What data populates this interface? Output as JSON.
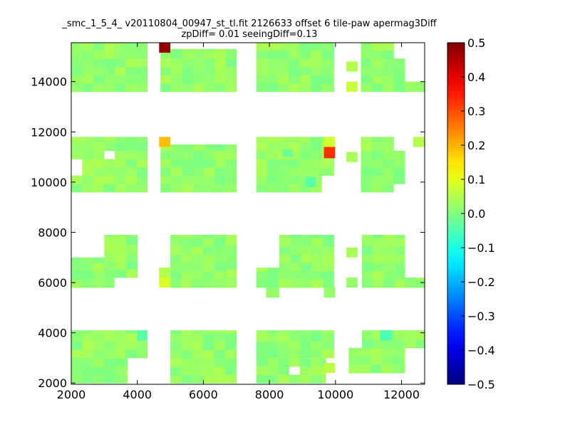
{
  "chart_data": {
    "type": "heatmap",
    "title_line1": "_smc_1_5_4_ v20110804_00947_st_tl.fit 2126633 offset 6 tile-paw apermag3Diff",
    "title_line2": "zpDiff= 0.01 seeingDiff=0.13",
    "xlim": [
      2000,
      12700
    ],
    "ylim": [
      1950,
      15550
    ],
    "x_ticks": [
      2000,
      4000,
      6000,
      8000,
      10000,
      12000
    ],
    "y_ticks": [
      2000,
      4000,
      6000,
      8000,
      10000,
      12000,
      14000
    ],
    "x_tick_labels": [
      "2000",
      "4000",
      "6000",
      "8000",
      "10000",
      "12000"
    ],
    "y_tick_labels": [
      "2000",
      "4000",
      "6000",
      "8000",
      "10000",
      "12000",
      "14000"
    ],
    "colorbar": {
      "min": -0.5,
      "max": 0.5,
      "colormap": "jet",
      "ticks": [
        0.5,
        0.4,
        0.3,
        0.2,
        0.1,
        0.0,
        -0.1,
        -0.2,
        -0.3,
        -0.4,
        -0.5
      ],
      "tick_labels": [
        "0.5",
        "0.4",
        "0.3",
        "0.2",
        "0.1",
        "0.0",
        "−0.1",
        "−0.2",
        "−0.3",
        "−0.4",
        "−0.5"
      ]
    },
    "cell_size": 330,
    "default_value": 0.02,
    "regions": [
      {
        "x0": 2000,
        "x1": 4300,
        "y0": 13600,
        "y1": 15550
      },
      {
        "x0": 4700,
        "x1": 7000,
        "y0": 13600,
        "y1": 15300
      },
      {
        "x0": 7600,
        "x1": 9950,
        "y0": 13600,
        "y1": 15550
      },
      {
        "x0": 10770,
        "x1": 12100,
        "y0": 13600,
        "y1": 15550
      },
      {
        "x0": 12100,
        "x1": 12700,
        "y0": 13600,
        "y1": 14000
      },
      {
        "x0": 2000,
        "x1": 4300,
        "y0": 9600,
        "y1": 11800
      },
      {
        "x0": 4700,
        "x1": 7000,
        "y0": 9600,
        "y1": 11500
      },
      {
        "x0": 7600,
        "x1": 9950,
        "y0": 9600,
        "y1": 11800
      },
      {
        "x0": 10770,
        "x1": 12100,
        "y0": 9600,
        "y1": 11800
      },
      {
        "x0": 3000,
        "x1": 4000,
        "y0": 6200,
        "y1": 7900
      },
      {
        "x0": 2000,
        "x1": 3000,
        "y0": 5800,
        "y1": 7000
      },
      {
        "x0": 3000,
        "x1": 3300,
        "y0": 5800,
        "y1": 6200
      },
      {
        "x0": 5000,
        "x1": 7000,
        "y0": 5800,
        "y1": 7900
      },
      {
        "x0": 6700,
        "x1": 7000,
        "y0": 6200,
        "y1": 7900
      },
      {
        "x0": 8300,
        "x1": 9950,
        "y0": 5800,
        "y1": 7900
      },
      {
        "x0": 7600,
        "x1": 8300,
        "y0": 5800,
        "y1": 6600
      },
      {
        "x0": 10800,
        "x1": 12100,
        "y0": 5800,
        "y1": 7900
      },
      {
        "x0": 12100,
        "x1": 12700,
        "y0": 5800,
        "y1": 6200
      },
      {
        "x0": 2000,
        "x1": 4300,
        "y0": 3000,
        "y1": 4100
      },
      {
        "x0": 2000,
        "x1": 3700,
        "y0": 2000,
        "y1": 3000
      },
      {
        "x0": 5000,
        "x1": 7000,
        "y0": 2000,
        "y1": 4100
      },
      {
        "x0": 7600,
        "x1": 9950,
        "y0": 3000,
        "y1": 4100
      },
      {
        "x0": 7600,
        "x1": 9700,
        "y0": 2000,
        "y1": 3000
      },
      {
        "x0": 10800,
        "x1": 12700,
        "y0": 3400,
        "y1": 4100
      },
      {
        "x0": 10400,
        "x1": 12100,
        "y0": 2400,
        "y1": 3400
      }
    ],
    "holes": [
      {
        "x0": 3000,
        "x1": 3300,
        "y0": 10800,
        "y1": 11100
      },
      {
        "x0": 2000,
        "x1": 2330,
        "y0": 10400,
        "y1": 10800
      },
      {
        "x0": 9700,
        "x1": 9950,
        "y0": 9600,
        "y1": 10100
      },
      {
        "x0": 11800,
        "x1": 12100,
        "y0": 11400,
        "y1": 11800
      },
      {
        "x0": 8600,
        "x1": 8900,
        "y0": 2400,
        "y1": 2800
      },
      {
        "x0": 11800,
        "x1": 12100,
        "y0": 9600,
        "y1": 10000
      },
      {
        "x0": 11800,
        "x1": 12100,
        "y0": 14800,
        "y1": 15550
      },
      {
        "x0": 2000,
        "x1": 2330,
        "y0": 7000,
        "y1": 7900
      }
    ],
    "highlights": [
      {
        "x0": 4660,
        "x1": 5000,
        "y0": 15150,
        "y1": 15550,
        "value": 0.48
      },
      {
        "x0": 4660,
        "x1": 5000,
        "y0": 11400,
        "y1": 11800,
        "value": 0.19
      },
      {
        "x0": 9650,
        "x1": 9990,
        "y0": 10950,
        "y1": 11400,
        "value": 0.33
      },
      {
        "x0": 9650,
        "x1": 9990,
        "y0": 11400,
        "y1": 11800,
        "value": 0.08
      },
      {
        "x0": 4660,
        "x1": 5000,
        "y0": 5800,
        "y1": 6200,
        "value": 0.09
      },
      {
        "x0": 4660,
        "x1": 5000,
        "y0": 6200,
        "y1": 6600,
        "value": 0.05
      },
      {
        "x0": 10330,
        "x1": 10670,
        "y0": 13600,
        "y1": 14000,
        "value": 0.07
      },
      {
        "x0": 10330,
        "x1": 10670,
        "y0": 14400,
        "y1": 14800,
        "value": 0.05
      },
      {
        "x0": 10330,
        "x1": 10670,
        "y0": 10800,
        "y1": 11200,
        "value": 0.04
      },
      {
        "x0": 10330,
        "x1": 10670,
        "y0": 7000,
        "y1": 7400,
        "value": 0.04
      },
      {
        "x0": 12350,
        "x1": 12700,
        "y0": 11400,
        "y1": 11800,
        "value": 0.05
      },
      {
        "x0": 10330,
        "x1": 10670,
        "y0": 5800,
        "y1": 6200,
        "value": 0.02
      },
      {
        "x0": 9650,
        "x1": 9990,
        "y0": 5400,
        "y1": 5800,
        "value": 0.02
      },
      {
        "x0": 7900,
        "x1": 8300,
        "y0": 5400,
        "y1": 5800,
        "value": 0.02
      },
      {
        "x0": 9650,
        "x1": 9990,
        "y0": 2400,
        "y1": 2800,
        "value": 0.06
      },
      {
        "x0": 4000,
        "x1": 4300,
        "y0": 3700,
        "y1": 4100,
        "value": -0.04
      },
      {
        "x0": 11350,
        "x1": 11700,
        "y0": 3700,
        "y1": 4100,
        "value": -0.05
      },
      {
        "x0": 9100,
        "x1": 9400,
        "y0": 9800,
        "y1": 10200,
        "value": -0.04
      },
      {
        "x0": 8400,
        "x1": 8700,
        "y0": 11000,
        "y1": 11300,
        "value": -0.02
      }
    ]
  }
}
